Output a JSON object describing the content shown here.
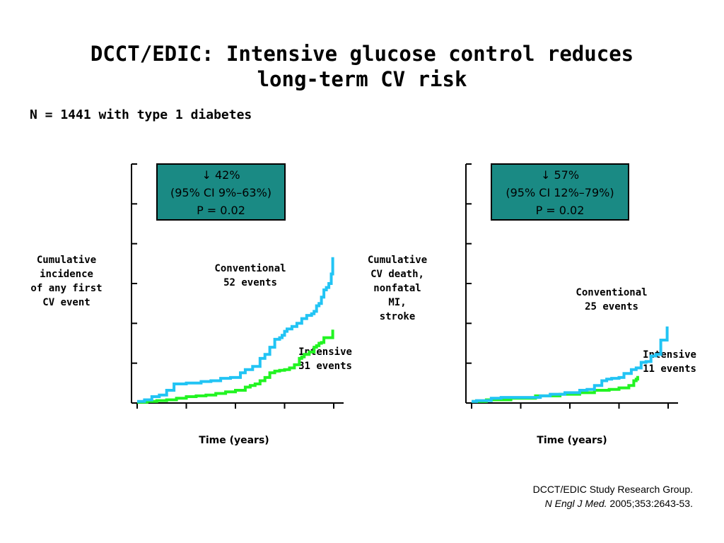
{
  "slide": {
    "title_line1": "DCCT/EDIC: Intensive glucose control reduces",
    "title_line2": "long-term CV risk",
    "subtitle": "N = 1441 with type 1 diabetes",
    "citation_line1": "DCCT/EDIC Study Research Group.",
    "citation_journal": "N Engl J Med.",
    "citation_rest": " 2005;353:2643-53."
  },
  "colors": {
    "conventional": "#22c4f4",
    "intensive": "#22f422",
    "box_fill": "#1a8a84"
  },
  "chart_data": [
    {
      "type": "line",
      "step": true,
      "ylabel_lines": [
        "Cumulative",
        "incidence",
        "of any first",
        "CV event"
      ],
      "xlabel": "Time (years)",
      "tick_labels": "none",
      "box_lines": [
        "↓ 42%",
        "(95% CI 9%–63%)",
        "P = 0.02"
      ],
      "series": [
        {
          "name": "Conventional",
          "label_lines": [
            "Conventional",
            "52 events"
          ],
          "x": [
            0,
            0.15,
            0.3,
            0.45,
            0.6,
            0.75,
            0.9,
            1.0,
            1.1,
            1.3,
            1.5,
            1.7,
            1.9,
            2.1,
            2.2,
            2.35,
            2.5,
            2.6,
            2.7,
            2.8,
            2.9,
            2.95,
            3.0,
            3.05,
            3.15,
            3.25,
            3.35,
            3.45,
            3.55,
            3.6,
            3.65,
            3.7,
            3.75,
            3.8,
            3.85,
            3.9,
            3.95,
            3.98
          ],
          "y": [
            0.2,
            0.4,
            0.8,
            1.0,
            1.6,
            2.4,
            2.4,
            2.5,
            2.5,
            2.7,
            2.8,
            3.1,
            3.2,
            3.8,
            4.2,
            4.6,
            5.6,
            6.1,
            7.0,
            8.0,
            8.2,
            8.5,
            9.0,
            9.3,
            9.6,
            10.0,
            10.6,
            11.0,
            11.2,
            11.5,
            12.2,
            12.5,
            13.3,
            14.2,
            14.5,
            15.0,
            16.2,
            18.3
          ]
        },
        {
          "name": "Intensive",
          "label_lines": [
            "Intensive",
            "31 events"
          ],
          "x": [
            0,
            0.2,
            0.4,
            0.6,
            0.8,
            1.0,
            1.2,
            1.4,
            1.6,
            1.8,
            2.0,
            2.2,
            2.3,
            2.4,
            2.5,
            2.6,
            2.7,
            2.8,
            2.9,
            3.0,
            3.1,
            3.2,
            3.3,
            3.35,
            3.4,
            3.5,
            3.6,
            3.65,
            3.7,
            3.75,
            3.8,
            3.95,
            3.98
          ],
          "y": [
            0.1,
            0.2,
            0.3,
            0.4,
            0.6,
            0.8,
            0.9,
            1.0,
            1.2,
            1.4,
            1.6,
            2.0,
            2.2,
            2.4,
            2.8,
            3.2,
            3.8,
            4.0,
            4.1,
            4.2,
            4.4,
            4.8,
            5.6,
            5.8,
            6.1,
            6.4,
            7.0,
            7.2,
            7.5,
            7.6,
            8.2,
            8.2,
            9.2
          ]
        }
      ]
    },
    {
      "type": "line",
      "step": true,
      "ylabel_lines": [
        "Cumulative",
        "CV death,",
        "nonfatal",
        "MI,",
        "stroke"
      ],
      "xlabel": "Time (years)",
      "tick_labels": "none",
      "box_lines": [
        "↓ 57%",
        "(95% CI 12%–79%)",
        "P = 0.02"
      ],
      "series": [
        {
          "name": "Conventional",
          "label_lines": [
            "Conventional",
            "25 events"
          ],
          "x": [
            0,
            0.1,
            0.4,
            0.6,
            1.0,
            1.4,
            1.6,
            1.9,
            2.2,
            2.35,
            2.5,
            2.65,
            2.75,
            2.85,
            3.0,
            3.1,
            3.25,
            3.35,
            3.45,
            3.55,
            3.65,
            3.75,
            3.85,
            3.95,
            3.98
          ],
          "y": [
            0.2,
            0.3,
            0.6,
            0.7,
            0.7,
            0.9,
            1.1,
            1.3,
            1.6,
            1.7,
            2.2,
            2.8,
            3.0,
            3.1,
            3.2,
            3.7,
            4.2,
            4.4,
            5.1,
            5.2,
            5.9,
            6.1,
            7.9,
            7.9,
            9.6
          ]
        },
        {
          "name": "Intensive",
          "label_lines": [
            "Intensive",
            "11 events"
          ],
          "x": [
            0,
            0.3,
            0.8,
            1.3,
            1.8,
            2.2,
            2.5,
            2.8,
            3.0,
            3.2,
            3.3,
            3.35,
            3.38
          ],
          "y": [
            0.2,
            0.4,
            0.6,
            0.9,
            1.1,
            1.3,
            1.6,
            1.7,
            1.9,
            2.2,
            2.8,
            3.0,
            3.4
          ]
        }
      ]
    }
  ]
}
